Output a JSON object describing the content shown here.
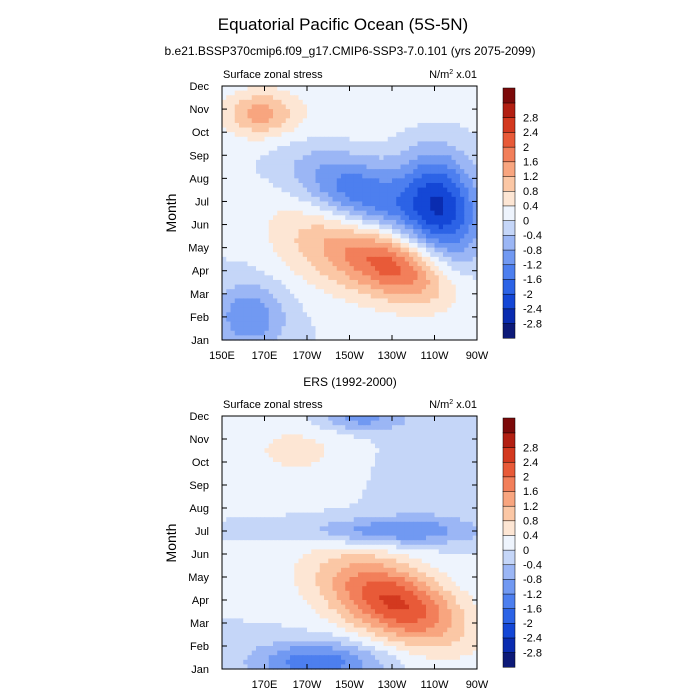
{
  "figure": {
    "title": "Equatorial Pacific Ocean (5S-5N)",
    "subtitle": "b.e21.BSSP370cmip6.f09_g17.CMIP6-SSP3-7.0.101 (yrs 2075-2099)",
    "colorbar_levels": [
      "-2.8",
      "-2.4",
      "-2",
      "-1.6",
      "-1.2",
      "-0.8",
      "-0.4",
      "0",
      "0.4",
      "0.8",
      "1.2",
      "1.6",
      "2",
      "2.4",
      "2.8"
    ],
    "colorbar_colors": [
      "#0d1a78",
      "#0a2cb0",
      "#1447d6",
      "#2c63e6",
      "#4d7fef",
      "#7199f2",
      "#9bb6f5",
      "#c5d6f8",
      "#eef4fd",
      "#fde6d4",
      "#fbc7a5",
      "#f8a57f",
      "#f27f5a",
      "#e85a38",
      "#d3391f",
      "#b21f12",
      "#7c0a0a"
    ]
  },
  "chart_data": [
    {
      "type": "heatmap",
      "header_left": "Surface zonal stress",
      "header_right": "N/m",
      "header_right_sup": "2",
      "header_right_suffix": " x.01",
      "ylabel": "Month",
      "y_ticks": [
        "Jan",
        "Feb",
        "Mar",
        "Apr",
        "May",
        "Jun",
        "Jul",
        "Aug",
        "Sep",
        "Oct",
        "Nov",
        "Dec"
      ],
      "x_ticks": [
        "150E",
        "170E",
        "170W",
        "150W",
        "130W",
        "110W",
        "90W"
      ],
      "x_range_lon": [
        150,
        270
      ],
      "features": [
        {
          "lon": 253,
          "month": 5.9,
          "rx": 18,
          "ry": 2.2,
          "v": -2.2,
          "tilt": -0.25
        },
        {
          "lon": 215,
          "month": 6.3,
          "rx": 30,
          "ry": 1.6,
          "v": -1.6,
          "tilt": -0.3
        },
        {
          "lon": 232,
          "month": 3.2,
          "rx": 25,
          "ry": 1.5,
          "v": 1.9,
          "tilt": -0.3
        },
        {
          "lon": 200,
          "month": 4.0,
          "rx": 30,
          "ry": 2.0,
          "v": 1.0,
          "tilt": -0.3
        },
        {
          "lon": 163,
          "month": 1.0,
          "rx": 16,
          "ry": 1.4,
          "v": -1.2,
          "tilt": 0
        },
        {
          "lon": 168,
          "month": 9.8,
          "rx": 16,
          "ry": 1.0,
          "v": 1.2,
          "tilt": 0
        },
        {
          "lon": 205,
          "month": 9.6,
          "rx": 60,
          "ry": 1.6,
          "v": 0.3,
          "tilt": 0
        }
      ]
    },
    {
      "type": "heatmap",
      "title": "ERS (1992-2000)",
      "header_left": "Surface zonal stress",
      "header_right": "N/m",
      "header_right_sup": "2",
      "header_right_suffix": " x.01",
      "ylabel": "Month",
      "y_ticks": [
        "Jan",
        "Feb",
        "Mar",
        "Apr",
        "May",
        "Jun",
        "Jul",
        "Aug",
        "Sep",
        "Oct",
        "Nov",
        "Dec"
      ],
      "x_ticks": [
        "170E",
        "170W",
        "150W",
        "130W",
        "110W",
        "90W"
      ],
      "x_range_lon": [
        150,
        270
      ],
      "features": [
        {
          "lon": 235,
          "month": 2.8,
          "rx": 30,
          "ry": 1.6,
          "v": 1.7,
          "tilt": -0.3
        },
        {
          "lon": 220,
          "month": 3.2,
          "rx": 35,
          "ry": 1.9,
          "v": 0.9,
          "tilt": -0.25
        },
        {
          "lon": 195,
          "month": 0.3,
          "rx": 30,
          "ry": 0.9,
          "v": -1.5,
          "tilt": 0
        },
        {
          "lon": 230,
          "month": 6.0,
          "rx": 40,
          "ry": 0.6,
          "v": -1.2,
          "tilt": 0
        },
        {
          "lon": 215,
          "month": 10.9,
          "rx": 20,
          "ry": 0.6,
          "v": -1.0,
          "tilt": 0
        },
        {
          "lon": 185,
          "month": 9.5,
          "rx": 30,
          "ry": 1.5,
          "v": 0.5,
          "tilt": 0
        },
        {
          "lon": 245,
          "month": 8.5,
          "rx": 20,
          "ry": 2.0,
          "v": -0.4,
          "tilt": 0
        }
      ]
    }
  ]
}
